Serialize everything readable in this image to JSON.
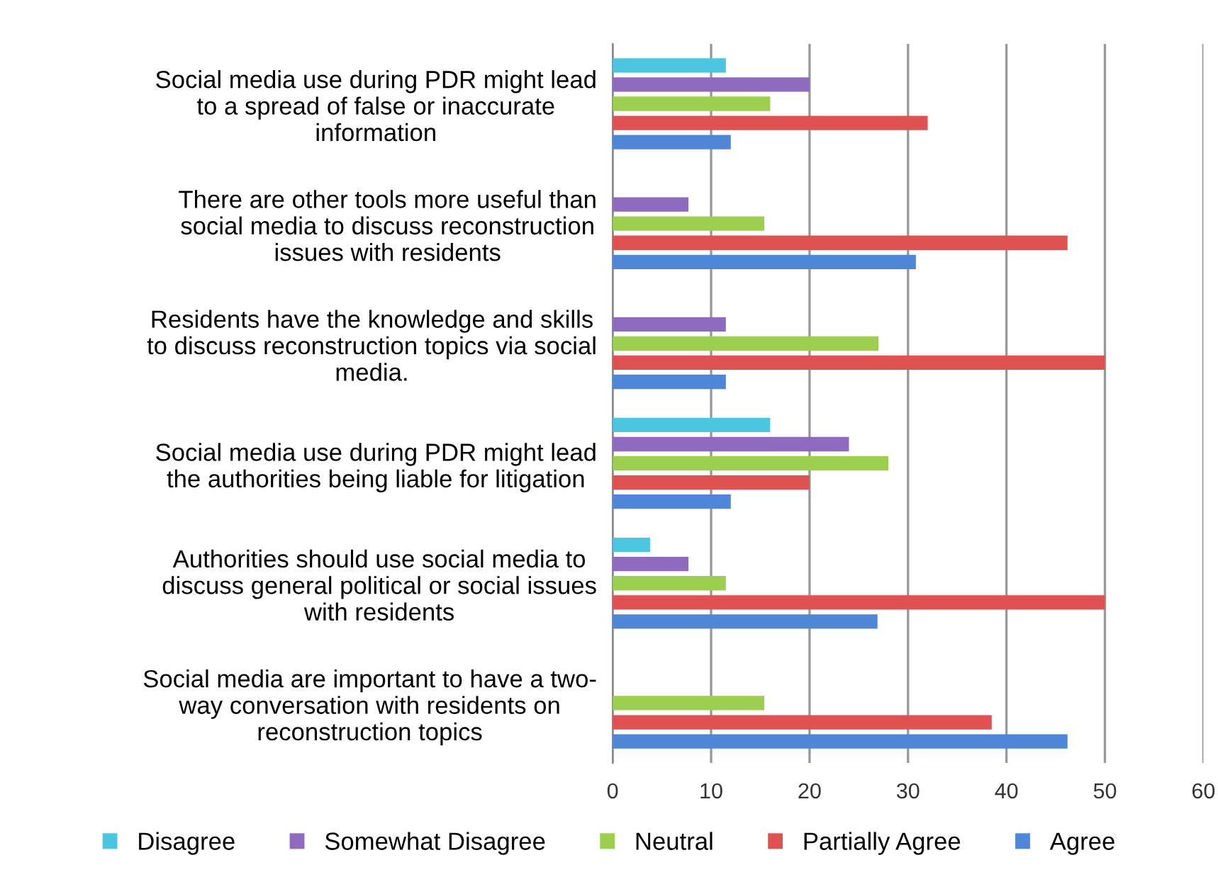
{
  "chart_data": {
    "type": "bar",
    "orientation": "horizontal",
    "categories": [
      "Social media use during PDR might lead\nto a spread of false or inaccurate\ninformation",
      "There are other tools more useful than\nsocial media to discuss reconstruction\nissues with residents",
      "Residents have the knowledge and skills\nto discuss reconstruction topics via social\nmedia.",
      "Social media use during PDR might lead\nthe authorities being liable for litigation",
      "Authorities should use social media to\ndiscuss general political or social issues\nwith residents",
      "Social media are important to have a two-\nway conversation with residents on\nreconstruction topics"
    ],
    "series": [
      {
        "name": "Disagree",
        "color": "#4bc6e0",
        "values": [
          11.5,
          0,
          0,
          16,
          3.8,
          0
        ]
      },
      {
        "name": "Somewhat Disagree",
        "color": "#8e6bbf",
        "values": [
          20,
          7.7,
          11.5,
          24,
          7.7,
          0
        ]
      },
      {
        "name": "Neutral",
        "color": "#9dcf4f",
        "values": [
          16,
          15.4,
          27,
          28,
          11.5,
          15.4
        ]
      },
      {
        "name": "Partially Agree",
        "color": "#e05252",
        "values": [
          32,
          46.2,
          50,
          20,
          50,
          38.5
        ]
      },
      {
        "name": "Agree",
        "color": "#4f87d8",
        "values": [
          12,
          30.8,
          11.5,
          12,
          26.9,
          46.2
        ]
      }
    ],
    "xlim": [
      0,
      60
    ],
    "xticks": [
      0,
      10,
      20,
      30,
      40,
      50,
      60
    ],
    "grid": "x",
    "legend": "bottom"
  }
}
